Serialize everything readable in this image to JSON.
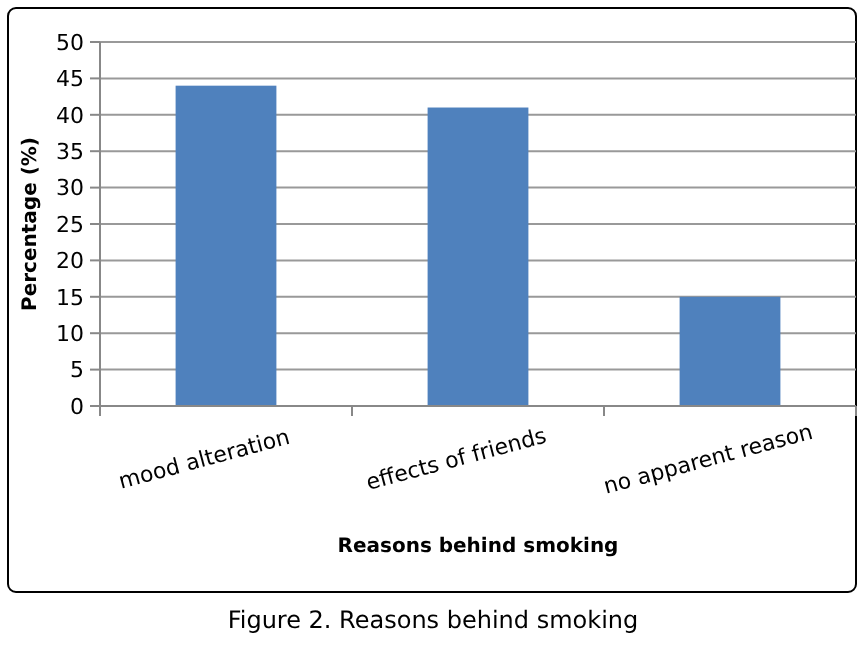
{
  "chart_data": {
    "type": "bar",
    "xlabel": "Reasons behind smoking",
    "ylabel": "Percentage (%)",
    "categories": [
      "mood alteration",
      "effects of friends",
      "no apparent reason"
    ],
    "values": [
      44,
      41,
      15
    ],
    "color": "#4f81bd",
    "ylim": [
      0,
      50
    ],
    "yticks": [
      0,
      5,
      10,
      15,
      20,
      25,
      30,
      35,
      40,
      45,
      50
    ],
    "grid": "y",
    "annotations": [
      "Figure 2. Reasons behind smoking"
    ]
  }
}
